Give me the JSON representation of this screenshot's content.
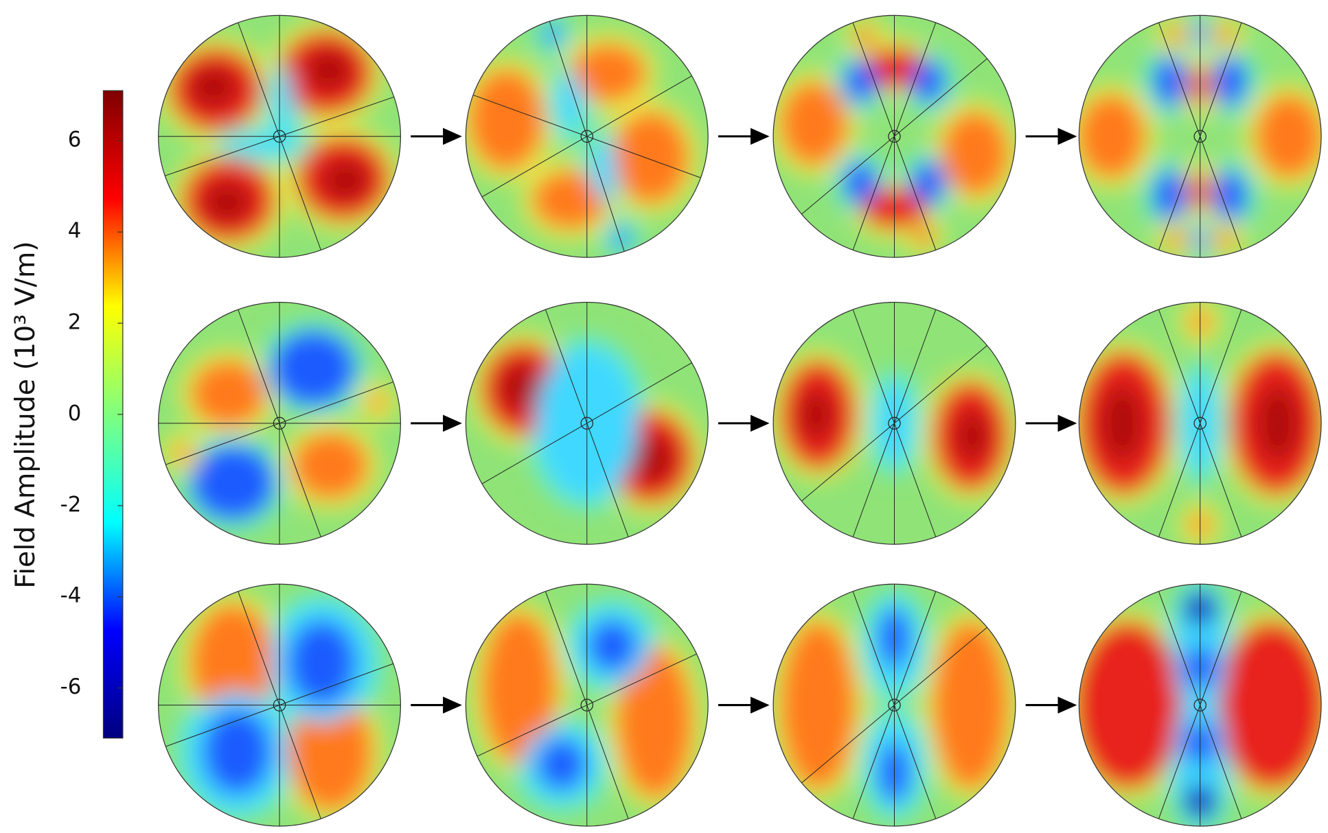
{
  "chart_data": {
    "type": "heatmap",
    "colorbar_label": "Field Amplitude (10³ V/m)",
    "zlim": [
      -7.1,
      7.1
    ],
    "zticks": [
      -6,
      -4,
      -2,
      0,
      2,
      4,
      6
    ],
    "colormap": [
      "#00007f",
      "#0000ff",
      "#00ffff",
      "#7fff7f",
      "#ffff00",
      "#ff0000",
      "#7f0000"
    ]
  }
}
